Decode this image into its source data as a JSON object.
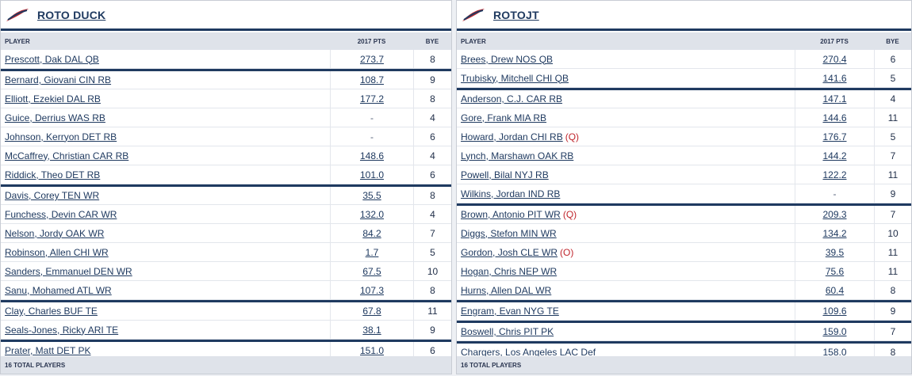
{
  "header": {
    "col_player": "PLAYER",
    "col_pts": "2017 PTS",
    "col_bye": "BYE"
  },
  "teams": [
    {
      "name": "ROTO DUCK",
      "footer": "16 TOTAL PLAYERS",
      "players": [
        {
          "name": "Prescott, Dak DAL QB",
          "pts": "273.7",
          "bye": "8",
          "injury": "",
          "group_start": false
        },
        {
          "name": "Bernard, Giovani CIN RB",
          "pts": "108.7",
          "bye": "9",
          "injury": "",
          "group_start": true
        },
        {
          "name": "Elliott, Ezekiel DAL RB",
          "pts": "177.2",
          "bye": "8",
          "injury": "",
          "group_start": false
        },
        {
          "name": "Guice, Derrius WAS RB",
          "pts": "-",
          "bye": "4",
          "injury": "",
          "group_start": false
        },
        {
          "name": "Johnson, Kerryon DET RB",
          "pts": "-",
          "bye": "6",
          "injury": "",
          "group_start": false
        },
        {
          "name": "McCaffrey, Christian CAR RB",
          "pts": "148.6",
          "bye": "4",
          "injury": "",
          "group_start": false
        },
        {
          "name": "Riddick, Theo DET RB",
          "pts": "101.0",
          "bye": "6",
          "injury": "",
          "group_start": false
        },
        {
          "name": "Davis, Corey TEN WR",
          "pts": "35.5",
          "bye": "8",
          "injury": "",
          "group_start": true
        },
        {
          "name": "Funchess, Devin CAR WR",
          "pts": "132.0",
          "bye": "4",
          "injury": "",
          "group_start": false
        },
        {
          "name": "Nelson, Jordy OAK WR",
          "pts": "84.2",
          "bye": "7",
          "injury": "",
          "group_start": false
        },
        {
          "name": "Robinson, Allen CHI WR",
          "pts": "1.7",
          "bye": "5",
          "injury": "",
          "group_start": false
        },
        {
          "name": "Sanders, Emmanuel DEN WR",
          "pts": "67.5",
          "bye": "10",
          "injury": "",
          "group_start": false
        },
        {
          "name": "Sanu, Mohamed ATL WR",
          "pts": "107.3",
          "bye": "8",
          "injury": "",
          "group_start": false
        },
        {
          "name": "Clay, Charles BUF TE",
          "pts": "67.8",
          "bye": "11",
          "injury": "",
          "group_start": true
        },
        {
          "name": "Seals-Jones, Ricky ARI TE",
          "pts": "38.1",
          "bye": "9",
          "injury": "",
          "group_start": false
        },
        {
          "name": "Prater, Matt DET PK",
          "pts": "151.0",
          "bye": "6",
          "injury": "",
          "group_start": true
        }
      ]
    },
    {
      "name": "ROTOJT",
      "footer": "16 TOTAL PLAYERS",
      "players": [
        {
          "name": "Brees, Drew NOS QB",
          "pts": "270.4",
          "bye": "6",
          "injury": "",
          "group_start": false
        },
        {
          "name": "Trubisky, Mitchell CHI QB",
          "pts": "141.6",
          "bye": "5",
          "injury": "",
          "group_start": false
        },
        {
          "name": "Anderson, C.J. CAR RB",
          "pts": "147.1",
          "bye": "4",
          "injury": "",
          "group_start": true
        },
        {
          "name": "Gore, Frank MIA RB",
          "pts": "144.6",
          "bye": "11",
          "injury": "",
          "group_start": false
        },
        {
          "name": "Howard, Jordan CHI RB",
          "pts": "176.7",
          "bye": "5",
          "injury": "(Q)",
          "group_start": false
        },
        {
          "name": "Lynch, Marshawn OAK RB",
          "pts": "144.2",
          "bye": "7",
          "injury": "",
          "group_start": false
        },
        {
          "name": "Powell, Bilal NYJ RB",
          "pts": "122.2",
          "bye": "11",
          "injury": "",
          "group_start": false
        },
        {
          "name": "Wilkins, Jordan IND RB",
          "pts": "-",
          "bye": "9",
          "injury": "",
          "group_start": false
        },
        {
          "name": "Brown, Antonio PIT WR",
          "pts": "209.3",
          "bye": "7",
          "injury": "(Q)",
          "group_start": true
        },
        {
          "name": "Diggs, Stefon MIN WR",
          "pts": "134.2",
          "bye": "10",
          "injury": "",
          "group_start": false
        },
        {
          "name": "Gordon, Josh CLE WR",
          "pts": "39.5",
          "bye": "11",
          "injury": "(O)",
          "group_start": false
        },
        {
          "name": "Hogan, Chris NEP WR",
          "pts": "75.6",
          "bye": "11",
          "injury": "",
          "group_start": false
        },
        {
          "name": "Hurns, Allen DAL WR",
          "pts": "60.4",
          "bye": "8",
          "injury": "",
          "group_start": false
        },
        {
          "name": "Engram, Evan NYG TE",
          "pts": "109.6",
          "bye": "9",
          "injury": "",
          "group_start": true
        },
        {
          "name": "Boswell, Chris PIT PK",
          "pts": "159.0",
          "bye": "7",
          "injury": "",
          "group_start": true
        },
        {
          "name": "Chargers, Los Angeles LAC Def",
          "pts": "158.0",
          "bye": "8",
          "injury": "",
          "group_start": true
        }
      ]
    }
  ]
}
